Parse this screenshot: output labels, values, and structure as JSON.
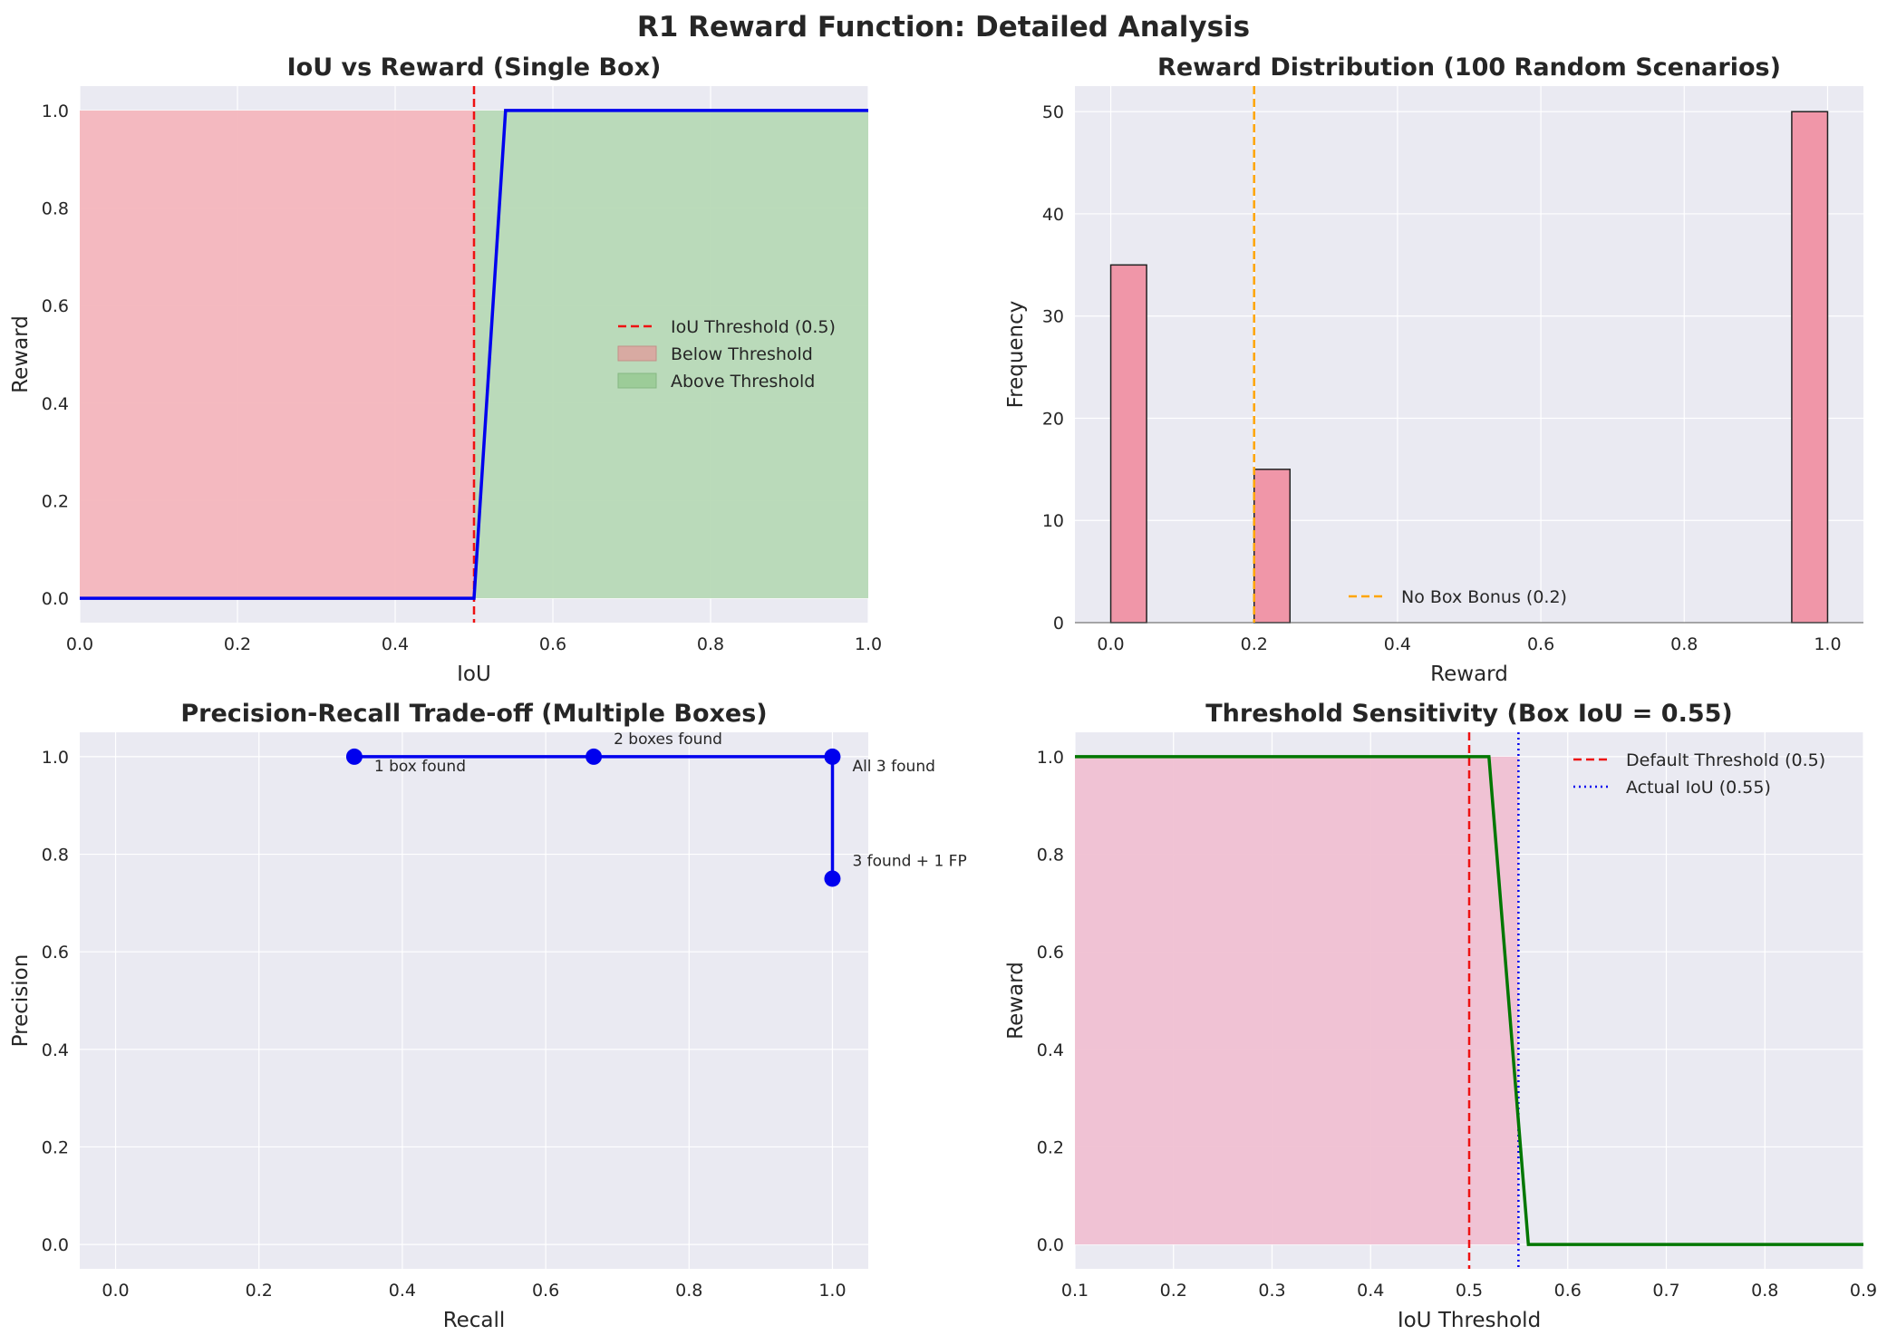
{
  "figure": {
    "title": "R1 Reward Function: Detailed Analysis"
  },
  "colors": {
    "axes_bg": "#eaeaf2",
    "grid": "#ffffff",
    "blue": "#0000ee",
    "red": "#ee1111",
    "orange": "#ffa500",
    "green": "#007700",
    "hist": "#f096a8",
    "below_fill": "#f4b6bd",
    "above_fill": "#b7d9b6",
    "pink_fill": "#f0c0d2"
  },
  "chart_data": [
    {
      "id": "p1",
      "type": "line",
      "title": "IoU vs Reward (Single Box)",
      "xlabel": "IoU",
      "ylabel": "Reward",
      "xlim": [
        0,
        1
      ],
      "ylim": [
        -0.05,
        1.05
      ],
      "xticks": [
        "0.0",
        "0.2",
        "0.4",
        "0.6",
        "0.8",
        "1.0"
      ],
      "yticks": [
        "0.0",
        "0.2",
        "0.4",
        "0.6",
        "0.8",
        "1.0"
      ],
      "grid": true,
      "legend_position": "center-right",
      "series": [
        {
          "x": [
            0,
            0.5,
            0.54,
            1.0
          ],
          "y": [
            0,
            0,
            1,
            1
          ]
        }
      ],
      "threshold": {
        "x": 0.5,
        "label": "IoU Threshold (0.5)"
      },
      "fills": [
        {
          "label": "Below Threshold",
          "x": [
            0,
            0.5
          ],
          "y0": 0,
          "y1": 1
        },
        {
          "label": "Above Threshold",
          "x": [
            0.5,
            1.0
          ],
          "y0": 0,
          "y1": 1
        }
      ]
    },
    {
      "id": "p2",
      "type": "bar",
      "title": "Reward Distribution (100 Random Scenarios)",
      "xlabel": "Reward",
      "ylabel": "Frequency",
      "xlim": [
        -0.05,
        1.05
      ],
      "ylim": [
        0,
        52.5
      ],
      "xticks": [
        "0.0",
        "0.2",
        "0.4",
        "0.6",
        "0.8",
        "1.0"
      ],
      "yticks": [
        "0",
        "10",
        "20",
        "30",
        "40",
        "50"
      ],
      "grid": true,
      "legend_position": "bottom-center",
      "bins": [
        {
          "x0": 0.0,
          "x1": 0.05,
          "count": 35
        },
        {
          "x0": 0.2,
          "x1": 0.25,
          "count": 15
        },
        {
          "x0": 0.95,
          "x1": 1.0,
          "count": 50
        }
      ],
      "reference": {
        "x": 0.2,
        "label": "No Box Bonus (0.2)"
      }
    },
    {
      "id": "p3",
      "type": "line",
      "title": "Precision-Recall Trade-off (Multiple Boxes)",
      "xlabel": "Recall",
      "ylabel": "Precision",
      "xlim": [
        -0.05,
        1.05
      ],
      "ylim": [
        -0.05,
        1.05
      ],
      "xticks": [
        "0.0",
        "0.2",
        "0.4",
        "0.6",
        "0.8",
        "1.0"
      ],
      "yticks": [
        "0.0",
        "0.2",
        "0.4",
        "0.6",
        "0.8",
        "1.0"
      ],
      "grid": true,
      "points": [
        {
          "x": 0.333,
          "y": 1.0,
          "label": "1 box found"
        },
        {
          "x": 0.667,
          "y": 1.0,
          "label": "2 boxes found"
        },
        {
          "x": 1.0,
          "y": 1.0,
          "label": "All 3 found"
        },
        {
          "x": 1.0,
          "y": 0.75,
          "label": "3 found + 1 FP"
        }
      ]
    },
    {
      "id": "p4",
      "type": "line",
      "title": "Threshold Sensitivity (Box IoU = 0.55)",
      "xlabel": "IoU Threshold",
      "ylabel": "Reward",
      "xlim": [
        0.1,
        0.9
      ],
      "ylim": [
        -0.05,
        1.05
      ],
      "xticks": [
        "0.1",
        "0.2",
        "0.3",
        "0.4",
        "0.5",
        "0.6",
        "0.7",
        "0.8",
        "0.9"
      ],
      "yticks": [
        "0.0",
        "0.2",
        "0.4",
        "0.6",
        "0.8",
        "1.0"
      ],
      "grid": true,
      "legend_position": "top-right",
      "series": [
        {
          "x": [
            0.1,
            0.52,
            0.56,
            0.9
          ],
          "y": [
            1,
            1,
            0,
            0
          ]
        }
      ],
      "fill": {
        "x": [
          0.1,
          0.55
        ],
        "y0": 0,
        "y1": 1
      },
      "default_threshold": {
        "x": 0.5,
        "label": "Default Threshold (0.5)"
      },
      "actual_iou": {
        "x": 0.55,
        "label": "Actual IoU (0.55)"
      }
    }
  ]
}
